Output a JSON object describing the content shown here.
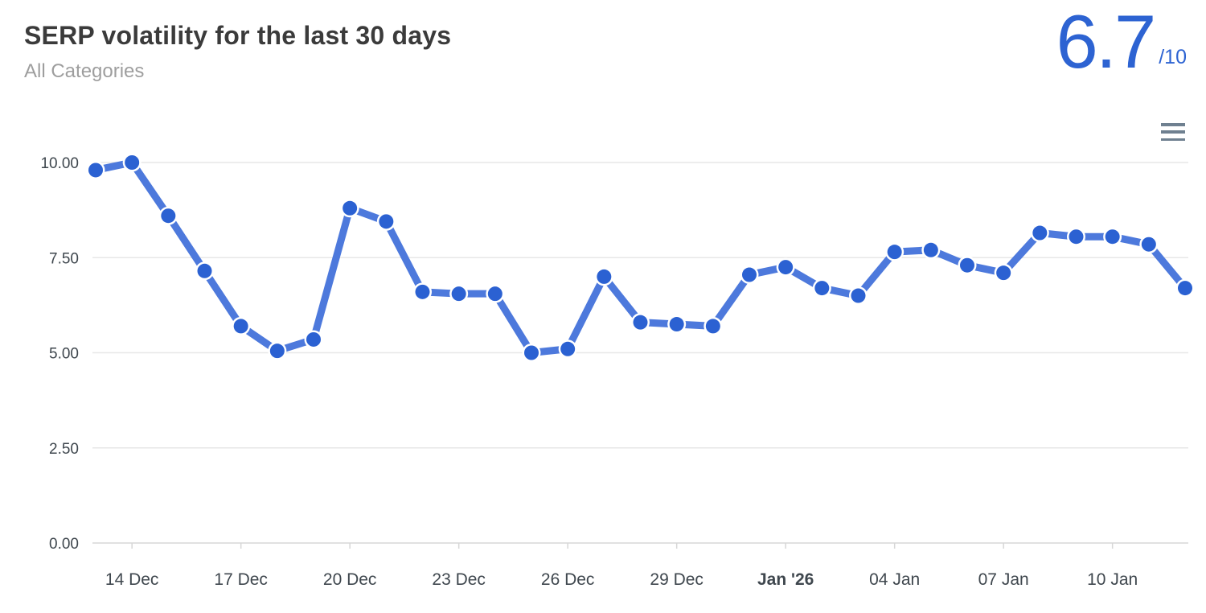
{
  "widget": {
    "title": "SERP volatility for the last 30 days",
    "subtitle": "All Categories",
    "score": {
      "value": "6.7",
      "suffix": "/10"
    }
  },
  "colors": {
    "score_blue": "#2d63d2",
    "line_blue": "#4d79dc",
    "dot_blue": "#2b61d2",
    "dot_halo": "#ffffff",
    "axis_label": "#3f474e",
    "gridline": "#e7e7e7",
    "axis_line": "#d7d7d7",
    "menu_icon": "#6f8090"
  },
  "chart_data": {
    "type": "line",
    "title": "SERP volatility for the last 30 days",
    "subtitle": "All Categories",
    "series": [
      {
        "name": "SERP volatility",
        "values": [
          9.8,
          10.0,
          8.6,
          7.15,
          5.7,
          5.05,
          5.35,
          8.8,
          8.45,
          6.6,
          6.55,
          6.55,
          5.0,
          5.1,
          7.0,
          5.8,
          5.75,
          5.7,
          7.05,
          7.25,
          6.7,
          6.5,
          7.65,
          7.7,
          7.3,
          7.1,
          8.15,
          8.05,
          8.05,
          7.85,
          6.7
        ]
      }
    ],
    "x_ticks": [
      {
        "index": 1,
        "label": "14 Dec",
        "bold": false
      },
      {
        "index": 4,
        "label": "17 Dec",
        "bold": false
      },
      {
        "index": 7,
        "label": "20 Dec",
        "bold": false
      },
      {
        "index": 10,
        "label": "23 Dec",
        "bold": false
      },
      {
        "index": 13,
        "label": "26 Dec",
        "bold": false
      },
      {
        "index": 16,
        "label": "29 Dec",
        "bold": false
      },
      {
        "index": 19,
        "label": "Jan '26",
        "bold": true
      },
      {
        "index": 22,
        "label": "04 Jan",
        "bold": false
      },
      {
        "index": 25,
        "label": "07 Jan",
        "bold": false
      },
      {
        "index": 28,
        "label": "10 Jan",
        "bold": false
      }
    ],
    "y_ticks": [
      {
        "value": 0,
        "label": "0.00"
      },
      {
        "value": 2.5,
        "label": "2.50"
      },
      {
        "value": 5,
        "label": "5.00"
      },
      {
        "value": 7.5,
        "label": "7.50"
      },
      {
        "value": 10,
        "label": "10.00"
      }
    ],
    "ylim": [
      0,
      10
    ],
    "grid": "horizontal",
    "legend": "none",
    "marker": "circle"
  }
}
